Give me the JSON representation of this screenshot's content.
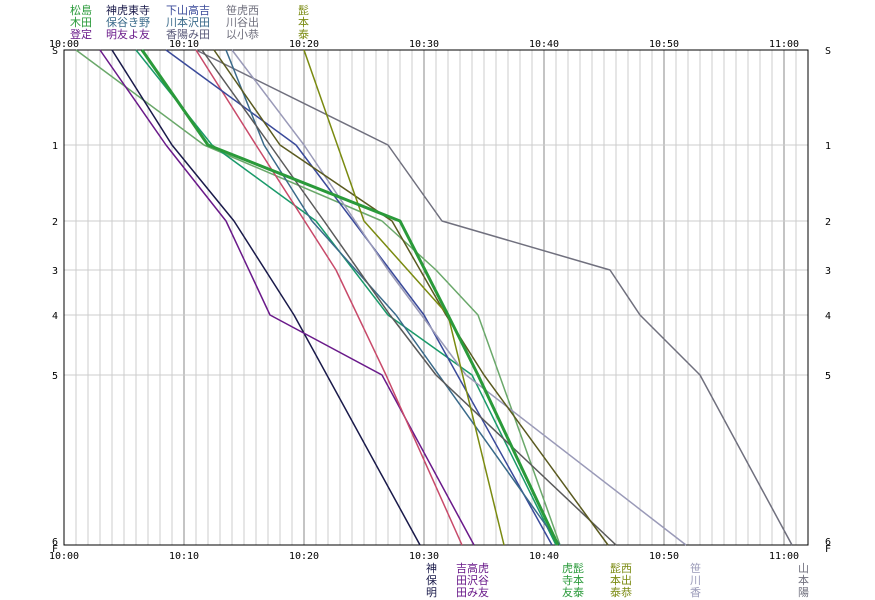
{
  "chart_data": {
    "type": "line",
    "title": "",
    "xlabel": "",
    "ylabel": "",
    "x_axis": {
      "unit": "time",
      "range": [
        "10:00",
        "11:04"
      ],
      "major_ticks": [
        "10:00",
        "10:10",
        "10:20",
        "10:30",
        "10:40",
        "10:50",
        "11:00"
      ],
      "minor_grid_minutes": 1
    },
    "y_axis": {
      "inverted": true,
      "row_labels": [
        "S",
        "1",
        "2",
        "3",
        "4",
        "5",
        "6",
        "F"
      ],
      "range": [
        0,
        6
      ]
    },
    "grid": true,
    "series": [
      {
        "name": "松島木田登定",
        "color": "#6aa86a",
        "x": [
          "10:01",
          "10:11:40",
          "10:26:30",
          "10:31",
          "10:34:30",
          "10:41:20"
        ],
        "y": [
          0,
          1,
          2,
          3,
          4,
          6
        ]
      },
      {
        "name": "神保明",
        "color": "#1a1a4a",
        "x": [
          "10:04",
          "10:09",
          "10:14:10",
          "10:19:10",
          "10:29:40"
        ],
        "y": [
          0,
          1,
          2,
          4,
          6
        ]
      },
      {
        "name": "虎谷友",
        "color": "#6a1a8a",
        "x": [
          "10:03",
          "10:08:30",
          "10:13:30",
          "10:17:10",
          "10:26:30",
          "10:34:10"
        ],
        "y": [
          0,
          1,
          2,
          4,
          5,
          6
        ]
      },
      {
        "name": "東き寺野よ友",
        "color": "#1a9a6a",
        "x": [
          "10:06",
          "10:12:20",
          "10:21",
          "10:27",
          "10:34",
          "10:41"
        ],
        "y": [
          0,
          1,
          2,
          4,
          5,
          6
        ]
      },
      {
        "name": "山本陽",
        "color": "#70707e",
        "x": [
          "10:11",
          "10:27",
          "10:31:30",
          "10:45:30",
          "10:48",
          "10:53",
          "11:00:40"
        ],
        "y": [
          0,
          1,
          2,
          3,
          4,
          5,
          6
        ]
      },
      {
        "name": "下川香",
        "color": "#c84a6a",
        "x": [
          "10:11",
          "10:16",
          "10:22:40",
          "10:26:50",
          "10:33:10"
        ],
        "y": [
          0,
          1,
          3,
          5,
          6
        ]
      },
      {
        "name": "高沢田",
        "color": "#3a4a9a",
        "x": [
          "10:08:30",
          "10:19:20",
          "10:30",
          "10:40:40"
        ],
        "y": [
          0,
          1,
          4,
          6
        ]
      },
      {
        "name": "吉田み田",
        "color": "#3a6a8a",
        "x": [
          "10:13:30",
          "10:16:40",
          "10:20:40",
          "10:27:40",
          "10:41:20"
        ],
        "y": [
          0,
          1,
          2,
          4,
          6
        ]
      },
      {
        "name": "笹川以",
        "color": "#9a9ab8",
        "x": [
          "10:14",
          "10:20",
          "10:27",
          "10:33:30",
          "10:51:50"
        ],
        "y": [
          0,
          1,
          3,
          5,
          6
        ]
      },
      {
        "name": "虎谷小",
        "color": "#5a5a5a",
        "x": [
          "10:11:30",
          "10:17:10",
          "10:21:40",
          "10:27:10",
          "10:31",
          "10:46"
        ],
        "y": [
          0,
          1,
          2,
          4,
          5,
          6
        ]
      },
      {
        "name": "西出恭",
        "color": "#5a5a20",
        "x": [
          "10:12:30",
          "10:18",
          "10:27:20",
          "10:31:50",
          "10:35",
          "10:45:20"
        ],
        "y": [
          0,
          1,
          2,
          4,
          5,
          6
        ]
      },
      {
        "name": "髭本泰",
        "color": "#7a8a10",
        "x": [
          "10:20",
          "10:25",
          "10:32",
          "10:36:40"
        ],
        "y": [
          0,
          2,
          4,
          6
        ]
      },
      {
        "name": "西出恭",
        "color": "#2a9a3a",
        "x": [
          "10:06:30",
          "10:12",
          "10:28",
          "10:32",
          "10:34:30",
          "10:41:10"
        ],
        "y": [
          0,
          1,
          2,
          4,
          5,
          6
        ]
      }
    ],
    "top_labels": [
      {
        "text": "松島",
        "color": "#2a9a3a",
        "x_pos": "10:00",
        "row": 0
      },
      {
        "text": "木田",
        "color": "#2a9a3a",
        "x_pos": "10:00",
        "row": 1
      },
      {
        "text": "登定",
        "color": "#6a1a8a",
        "x_pos": "10:00",
        "row": 2
      },
      {
        "text": "神虎東寺",
        "color": "#1a1a4a",
        "x_pos": "10:03",
        "row": 0
      },
      {
        "text": "保谷き野",
        "color": "#3a6a8a",
        "x_pos": "10:03",
        "row": 1
      },
      {
        "text": "明友よ友",
        "color": "#6a1a8a",
        "x_pos": "10:03",
        "row": 2
      },
      {
        "text": "下山高吉",
        "color": "#3a4a9a",
        "x_pos": "10:08",
        "row": 0
      },
      {
        "text": "川本沢田",
        "color": "#3a6a8a",
        "x_pos": "10:08",
        "row": 1
      },
      {
        "text": "香陽み田",
        "color": "#5a5a7a",
        "x_pos": "10:08",
        "row": 2
      },
      {
        "text": "笹虎西",
        "color": "#70707e",
        "x_pos": "10:13",
        "row": 0
      },
      {
        "text": "川谷出",
        "color": "#70707e",
        "x_pos": "10:13",
        "row": 1
      },
      {
        "text": "以小恭",
        "color": "#70707e",
        "x_pos": "10:13",
        "row": 2
      },
      {
        "text": "髭",
        "color": "#7a8a10",
        "x_pos": "10:19",
        "row": 0
      },
      {
        "text": "本",
        "color": "#7a8a10",
        "x_pos": "10:19",
        "row": 1
      },
      {
        "text": "泰",
        "color": "#7a8a10",
        "x_pos": "10:19",
        "row": 2
      }
    ],
    "bottom_labels": [
      {
        "text": "神",
        "color": "#1a1a4a",
        "x_pos": "10:29:40",
        "row": 0
      },
      {
        "text": "保",
        "color": "#1a1a4a",
        "x_pos": "10:29:40",
        "row": 1
      },
      {
        "text": "明",
        "color": "#1a1a4a",
        "x_pos": "10:29:40",
        "row": 2
      },
      {
        "text": "吉高虎",
        "color": "#6a1a8a",
        "x_pos": "10:32:10",
        "row": 0
      },
      {
        "text": "田沢谷",
        "color": "#6a1a8a",
        "x_pos": "10:32:10",
        "row": 1
      },
      {
        "text": "田み友",
        "color": "#6a1a8a",
        "x_pos": "10:32:10",
        "row": 2
      },
      {
        "text": "虎髭",
        "color": "#2a9a3a",
        "x_pos": "10:41:00",
        "row": 0
      },
      {
        "text": "寺本",
        "color": "#2a9a3a",
        "x_pos": "10:41:00",
        "row": 1
      },
      {
        "text": "友泰",
        "color": "#2a9a3a",
        "x_pos": "10:41:00",
        "row": 2
      },
      {
        "text": "髭西",
        "color": "#7a8a10",
        "x_pos": "10:45:00",
        "row": 0
      },
      {
        "text": "本出",
        "color": "#7a8a10",
        "x_pos": "10:45:00",
        "row": 1
      },
      {
        "text": "泰恭",
        "color": "#7a8a10",
        "x_pos": "10:45:00",
        "row": 2
      },
      {
        "text": "笹",
        "color": "#9a9ab8",
        "x_pos": "10:51:40",
        "row": 0
      },
      {
        "text": "川",
        "color": "#9a9ab8",
        "x_pos": "10:51:40",
        "row": 1
      },
      {
        "text": "香",
        "color": "#9a9ab8",
        "x_pos": "10:51:40",
        "row": 2
      },
      {
        "text": "山",
        "color": "#70707e",
        "x_pos": "11:00:40",
        "row": 0
      },
      {
        "text": "本",
        "color": "#70707e",
        "x_pos": "11:00:40",
        "row": 1
      },
      {
        "text": "陽",
        "color": "#70707e",
        "x_pos": "11:00:40",
        "row": 2
      }
    ]
  }
}
